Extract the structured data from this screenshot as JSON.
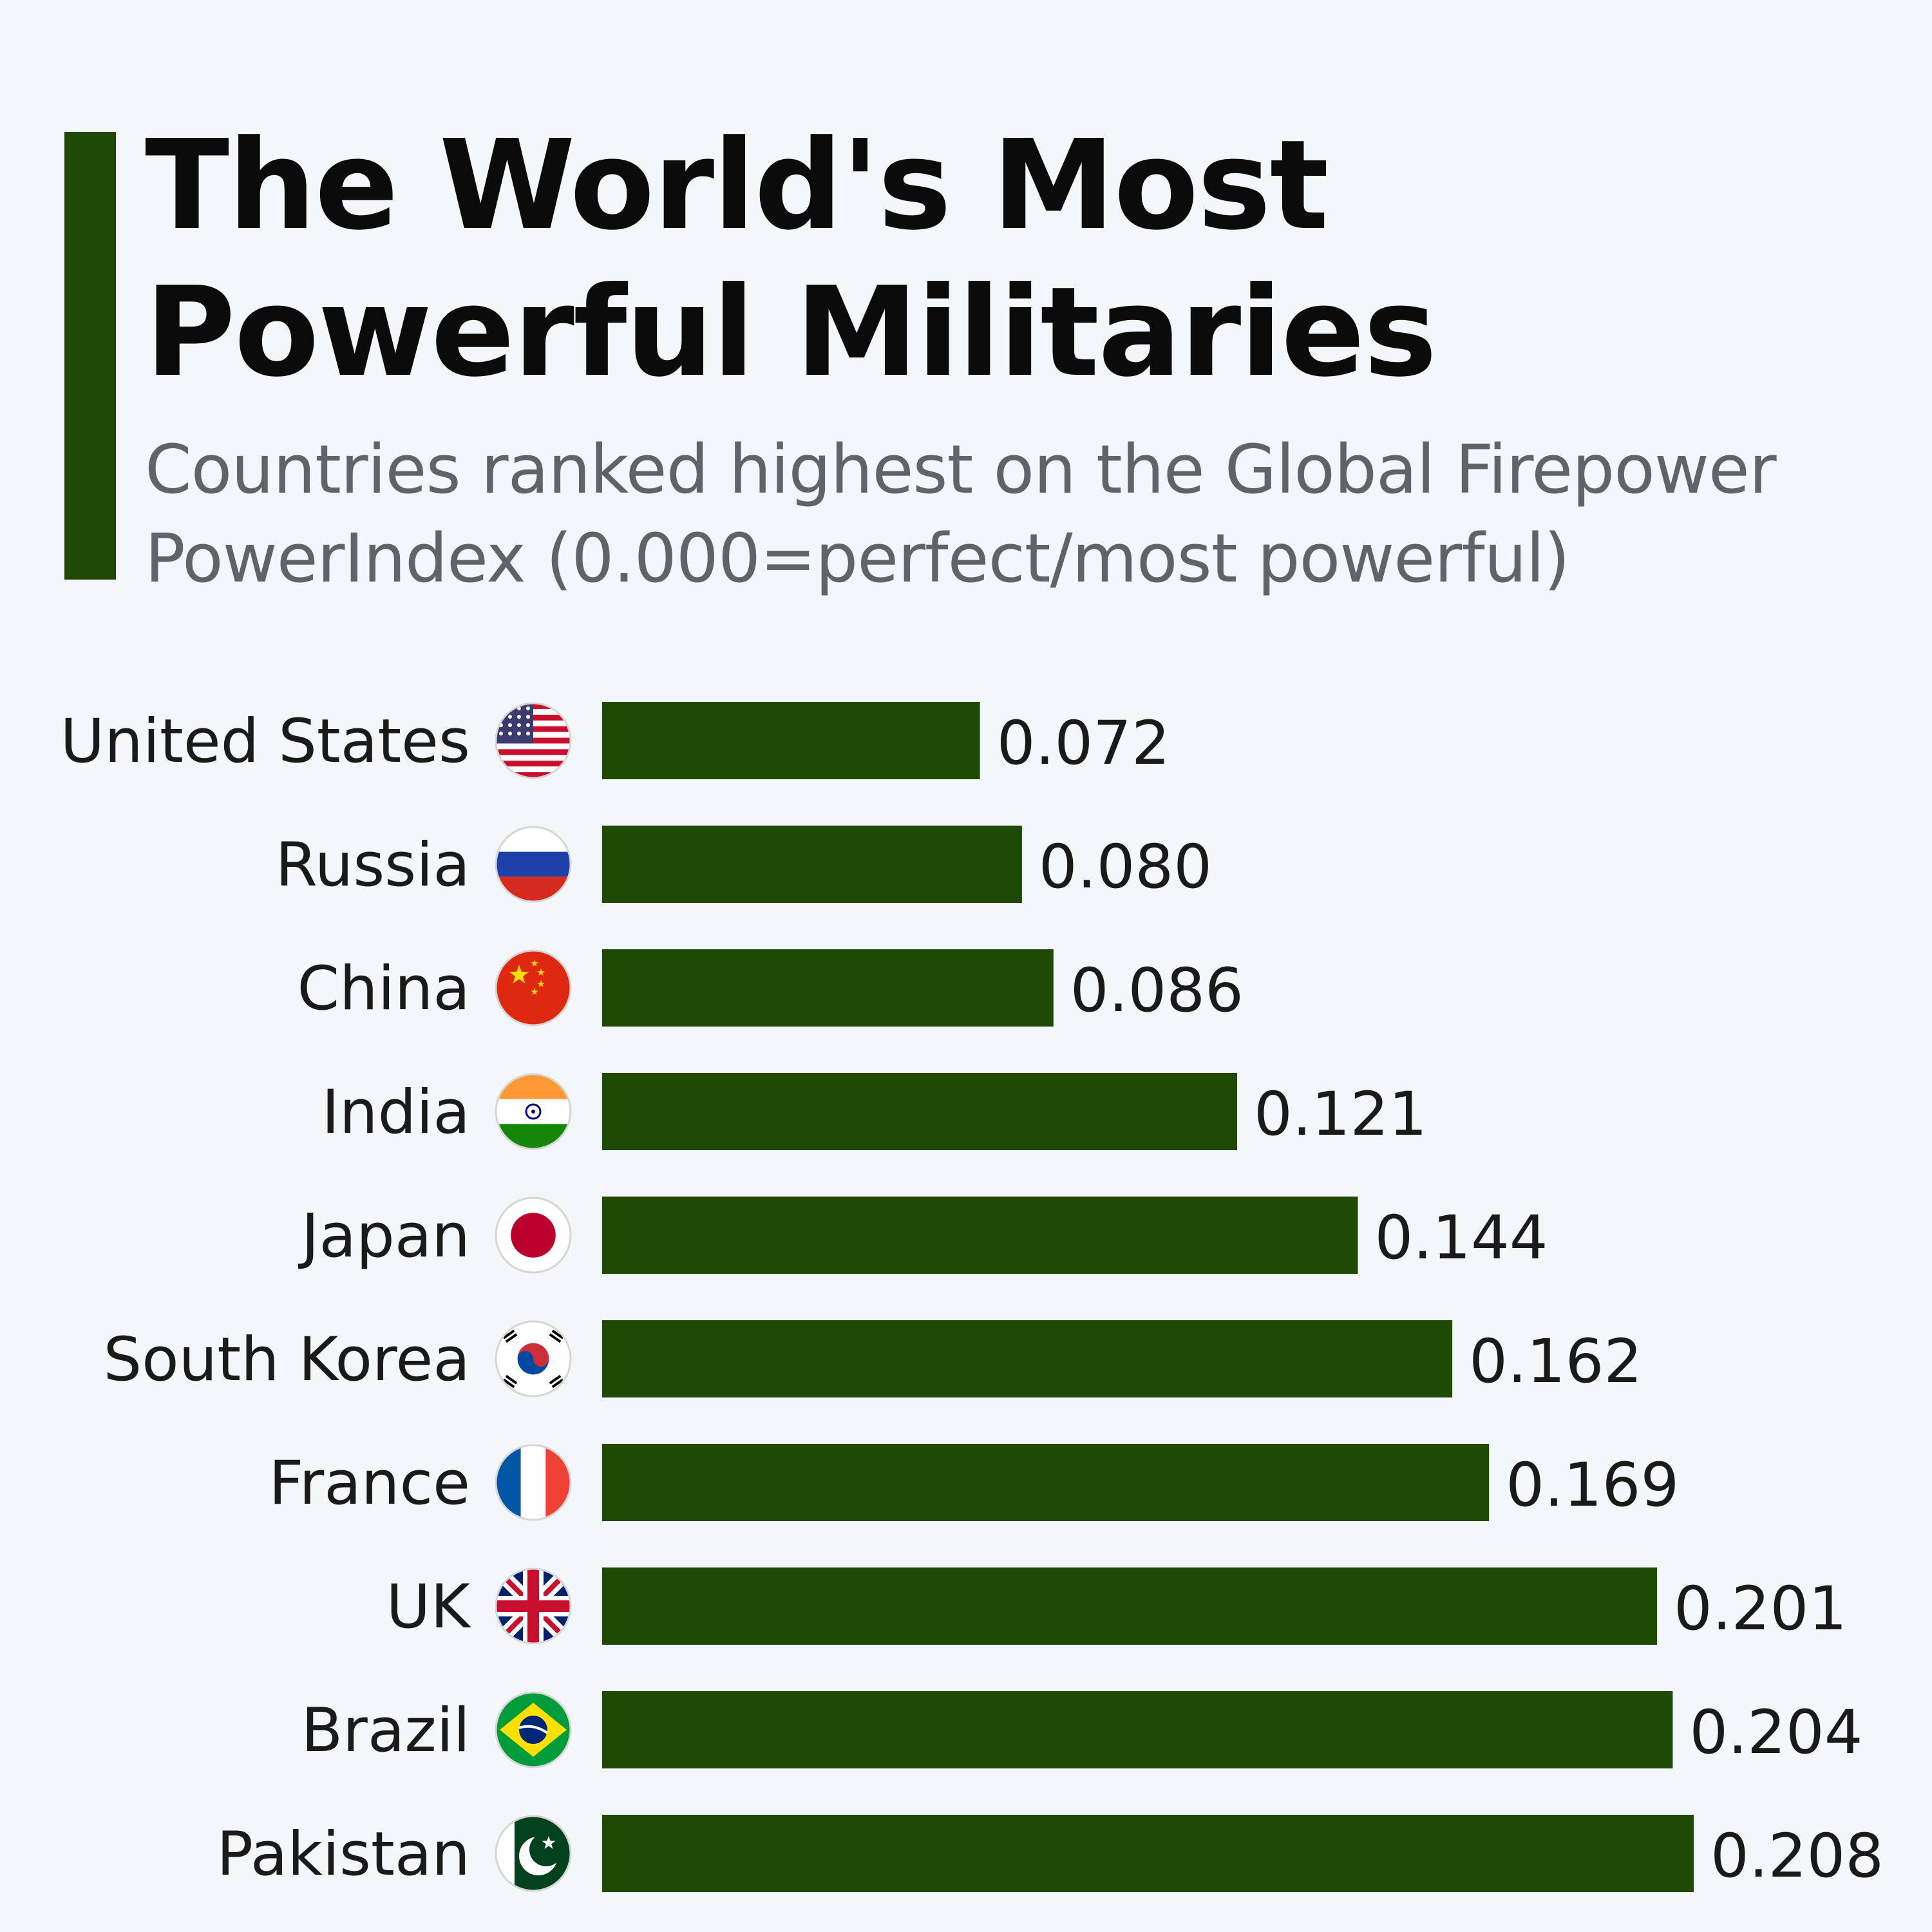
{
  "header": {
    "title_line1": "The World's Most",
    "title_line2": "Powerful Militaries",
    "subtitle": "Countries ranked highest on the Global Firepower PowerIndex (0.000=perfect/most powerful)"
  },
  "colors": {
    "bar": "#1f4a04",
    "accent": "#1f4a04",
    "background": "#f3f7fa"
  },
  "chart_data": {
    "type": "bar",
    "orientation": "horizontal",
    "title": "The World's Most Powerful Militaries",
    "subtitle": "Countries ranked highest on the Global Firepower PowerIndex (0.000=perfect/most powerful)",
    "xlabel": "",
    "ylabel": "",
    "categories": [
      "United States",
      "Russia",
      "China",
      "India",
      "Japan",
      "South Korea",
      "France",
      "UK",
      "Brazil",
      "Pakistan"
    ],
    "values": [
      0.072,
      0.08,
      0.086,
      0.121,
      0.144,
      0.162,
      0.169,
      0.201,
      0.204,
      0.208
    ],
    "value_labels": [
      "0.072",
      "0.080",
      "0.086",
      "0.121",
      "0.144",
      "0.162",
      "0.169",
      "0.201",
      "0.204",
      "0.208"
    ],
    "flag_icons": [
      "us-flag-icon",
      "russia-flag-icon",
      "china-flag-icon",
      "india-flag-icon",
      "japan-flag-icon",
      "south-korea-flag-icon",
      "france-flag-icon",
      "uk-flag-icon",
      "brazil-flag-icon",
      "pakistan-flag-icon"
    ],
    "xlim": [
      0,
      0.208
    ],
    "grid": false,
    "legend": "none"
  }
}
